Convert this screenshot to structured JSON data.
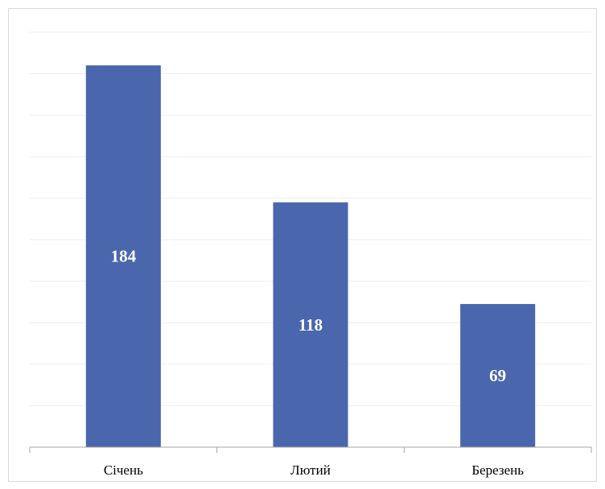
{
  "chart_data": {
    "type": "bar",
    "categories": [
      "Січень",
      "Лютий",
      "Березень"
    ],
    "values": [
      184,
      118,
      69
    ],
    "ylim": [
      0,
      200
    ],
    "grid": true,
    "bar_color": "#4a66ac",
    "gridline_color": "#eeeeee",
    "axis_color": "#a6a6a6",
    "data_label_color": "#ffffff"
  }
}
